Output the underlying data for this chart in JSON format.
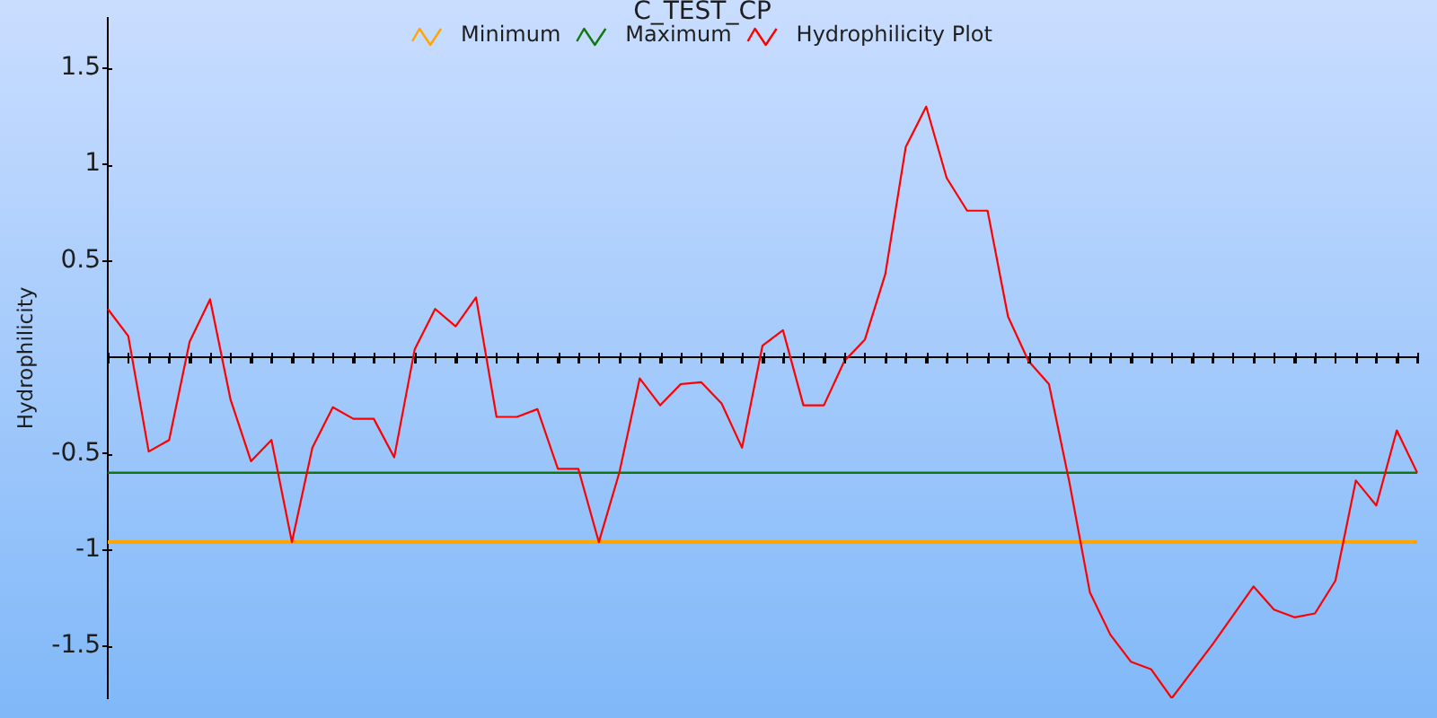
{
  "chart_data": {
    "type": "line",
    "title": "C_TEST_CP",
    "ylabel": "Hydrophilicity",
    "categories": [
      null,
      null,
      null,
      null,
      null,
      null,
      null,
      null,
      null,
      null,
      null,
      null,
      null,
      null,
      null,
      null,
      null,
      null,
      null,
      null,
      null,
      null,
      null,
      null,
      null,
      null,
      null,
      null,
      null,
      null,
      null,
      null,
      null,
      null,
      null,
      null,
      null,
      null,
      null,
      null,
      null,
      null,
      null,
      null,
      null,
      null,
      null,
      null,
      null,
      null,
      null,
      null,
      null,
      null,
      null,
      null,
      null,
      null,
      null,
      null,
      null,
      null,
      null,
      null,
      null
    ],
    "series": [
      {
        "name": "Minimum",
        "color": "#ffa500",
        "values": [
          -0.96,
          -0.96,
          -0.96,
          -0.96,
          -0.96,
          -0.96,
          -0.96,
          -0.96,
          -0.96,
          -0.96,
          -0.96,
          -0.96,
          -0.96,
          -0.96,
          -0.96,
          -0.96,
          -0.96,
          -0.96,
          -0.96,
          -0.96,
          -0.96,
          -0.96,
          -0.96,
          -0.96,
          -0.96,
          -0.96,
          -0.96,
          -0.96,
          -0.96,
          -0.96,
          -0.96,
          -0.96,
          -0.96,
          -0.96,
          -0.96,
          -0.96,
          -0.96,
          -0.96,
          -0.96,
          -0.96,
          -0.96,
          -0.96,
          -0.96,
          -0.96,
          -0.96,
          -0.96,
          -0.96,
          -0.96,
          -0.96,
          -0.96,
          -0.96,
          -0.96,
          -0.96,
          -0.96,
          -0.96,
          -0.96,
          -0.96,
          -0.96,
          -0.96,
          -0.96,
          -0.96,
          -0.96,
          -0.96,
          -0.96,
          -0.96
        ]
      },
      {
        "name": "Maximum",
        "color": "#117711",
        "values": [
          -0.6,
          -0.6,
          -0.6,
          -0.6,
          -0.6,
          -0.6,
          -0.6,
          -0.6,
          -0.6,
          -0.6,
          -0.6,
          -0.6,
          -0.6,
          -0.6,
          -0.6,
          -0.6,
          -0.6,
          -0.6,
          -0.6,
          -0.6,
          -0.6,
          -0.6,
          -0.6,
          -0.6,
          -0.6,
          -0.6,
          -0.6,
          -0.6,
          -0.6,
          -0.6,
          -0.6,
          -0.6,
          -0.6,
          -0.6,
          -0.6,
          -0.6,
          -0.6,
          -0.6,
          -0.6,
          -0.6,
          -0.6,
          -0.6,
          -0.6,
          -0.6,
          -0.6,
          -0.6,
          -0.6,
          -0.6,
          -0.6,
          -0.6,
          -0.6,
          -0.6,
          -0.6,
          -0.6,
          -0.6,
          -0.6,
          -0.6,
          -0.6,
          -0.6,
          -0.6,
          -0.6,
          -0.6,
          -0.6,
          -0.6,
          -0.6
        ]
      },
      {
        "name": "Hydrophilicity Plot",
        "color": "#ff0000",
        "values": [
          0.25,
          0.11,
          -0.49,
          -0.43,
          0.08,
          0.3,
          -0.22,
          -0.54,
          -0.43,
          -0.96,
          -0.47,
          -0.26,
          -0.32,
          -0.32,
          -0.52,
          0.04,
          0.25,
          0.16,
          0.31,
          -0.31,
          -0.31,
          -0.27,
          -0.58,
          -0.58,
          -0.96,
          -0.6,
          -0.11,
          -0.25,
          -0.14,
          -0.13,
          -0.24,
          -0.47,
          0.06,
          0.14,
          -0.25,
          -0.25,
          -0.02,
          0.09,
          0.43,
          1.09,
          1.3,
          0.93,
          0.76,
          0.76,
          0.21,
          -0.02,
          -0.14,
          -0.65,
          -1.22,
          -1.44,
          -1.58,
          -1.62,
          -1.77,
          -1.63,
          -1.49,
          -1.34,
          -1.19,
          -1.31,
          -1.35,
          -1.33,
          -1.16,
          -0.64,
          -0.77,
          -0.38,
          -0.6
        ]
      }
    ],
    "ylim": [
      -1.77,
      1.76
    ],
    "yticks": [
      -1.5,
      -1,
      -0.5,
      0.5,
      1,
      1.5
    ],
    "grid": false,
    "legend": "top",
    "tick_labels": "y"
  }
}
